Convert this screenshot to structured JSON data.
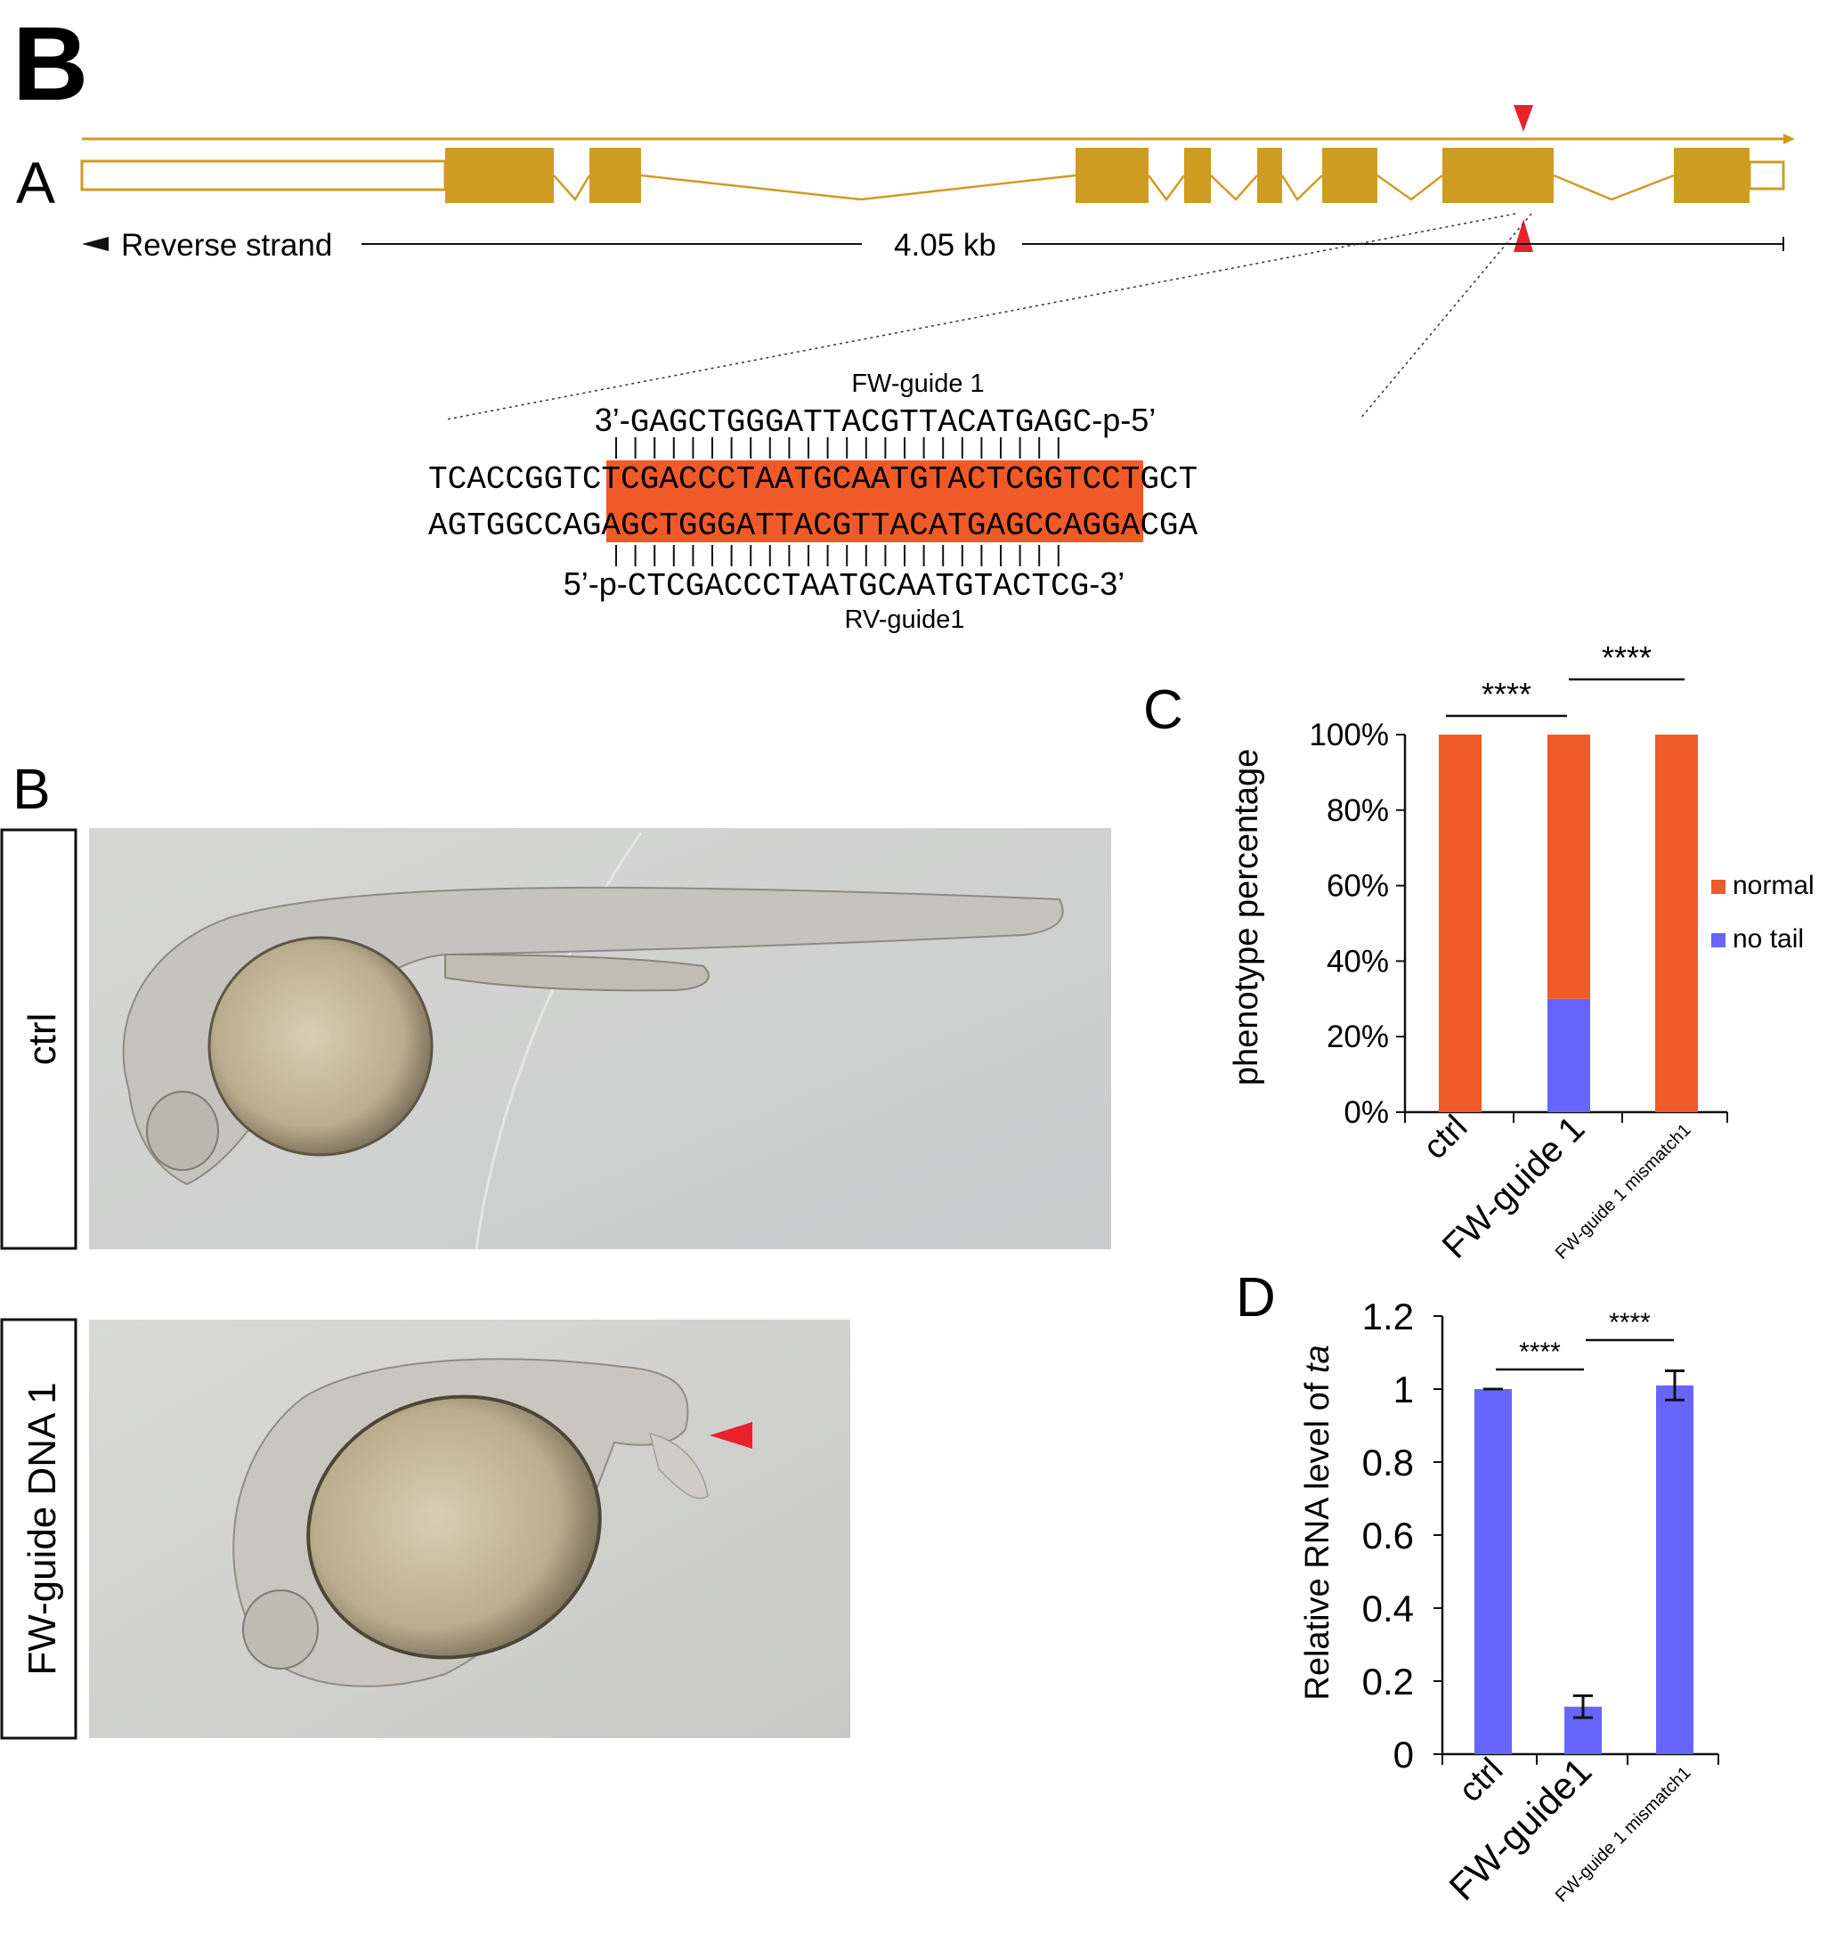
{
  "panel_letters": {
    "top": "B",
    "gene": "A",
    "images": "B",
    "bar": "C",
    "rna": "D"
  },
  "gene_model": {
    "strand_label": "Reverse strand",
    "length_label": "4.05 kb",
    "colors": {
      "exon": "#cf9c22",
      "line": "#cf9c22",
      "marker": "#e8212c"
    }
  },
  "sequence": {
    "fw_guide_label": "FW-guide 1",
    "rv_guide_label": "RV-guide1",
    "fw_guide": {
      "prefix": "3’-",
      "seq": "GAGCTGGGATTACGTTACATGAGC",
      "suffix": "-p-5’"
    },
    "top_strand": {
      "left": "TCACCGGT",
      "target": "CTCGACCCTAATGCAATGTACTCG",
      "right": "GTCCTGCT"
    },
    "bottom_strand": {
      "left": "AGTGGCCA",
      "target": "GAGCTGGGATTACGTTACATGAGC",
      "right": "CAGGACGA"
    },
    "rv_guide": {
      "prefix": "5’-p-",
      "seq": "CTCGACCCTAATGCAATGTACTCG",
      "suffix": "-3’"
    },
    "highlight_color": "#f05a28"
  },
  "images": {
    "ctrl_label": "ctrl",
    "fw_label": "FW-guide DNA 1"
  },
  "chart_data": [
    {
      "type": "bar",
      "stacked": true,
      "categories": [
        "ctrl",
        "FW-guide 1",
        "FW-guide 1 mismatch1"
      ],
      "series": [
        {
          "name": "normal",
          "values": [
            100,
            70,
            100
          ],
          "color": "#f05a28"
        },
        {
          "name": "no tail",
          "values": [
            0,
            30,
            0
          ],
          "color": "#6666ff"
        }
      ],
      "ylabel": "phenotype percentage",
      "yticks": [
        "0%",
        "20%",
        "40%",
        "60%",
        "80%",
        "100%"
      ],
      "ylim": [
        0,
        100
      ],
      "significance": [
        {
          "between": [
            "ctrl",
            "FW-guide 1"
          ],
          "label": "****"
        },
        {
          "between": [
            "FW-guide 1",
            "FW-guide 1 mismatch1"
          ],
          "label": "****"
        }
      ],
      "legend_position": "right"
    },
    {
      "type": "bar",
      "categories": [
        "ctrl",
        "FW-guide1",
        "FW-guide 1 mismatch1"
      ],
      "values": [
        1.0,
        0.13,
        1.01
      ],
      "errors": [
        0.0,
        0.03,
        0.04
      ],
      "color": "#6666ff",
      "ylabel_prefix": "Relative RNA level of ",
      "ylabel_italic": "ta",
      "yticks": [
        "0",
        "0.2",
        "0.4",
        "0.6",
        "0.8",
        "1",
        "1.2"
      ],
      "ylim": [
        0,
        1.2
      ],
      "significance": [
        {
          "between": [
            "ctrl",
            "FW-guide1"
          ],
          "label": "****"
        },
        {
          "between": [
            "FW-guide1",
            "FW-guide 1 mismatch1"
          ],
          "label": "****"
        }
      ]
    }
  ]
}
